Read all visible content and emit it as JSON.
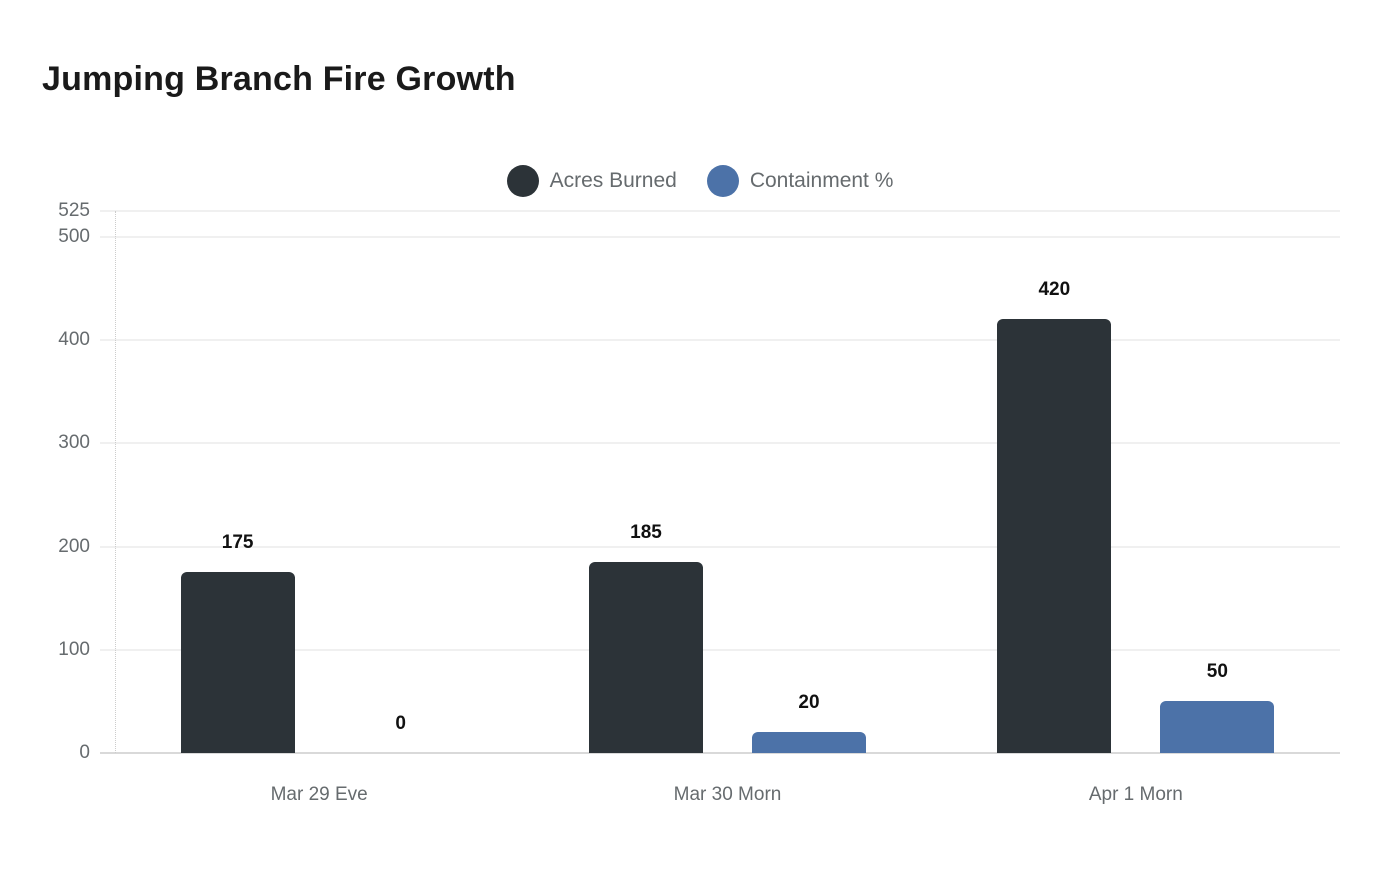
{
  "title": "Jumping Branch Fire Growth",
  "chart_data": {
    "type": "bar",
    "title": "Jumping Branch Fire Growth",
    "categories": [
      "Mar 29 Eve",
      "Mar 30 Morn",
      "Apr 1 Morn"
    ],
    "series": [
      {
        "name": "Acres Burned",
        "color": "#2c3338",
        "values": [
          175,
          185,
          420
        ]
      },
      {
        "name": "Containment %",
        "color": "#4c72a8",
        "values": [
          0,
          20,
          50
        ]
      }
    ],
    "data_labels": [
      [
        "175",
        "185",
        "420"
      ],
      [
        "0",
        "20",
        "50"
      ]
    ],
    "y_ticks": [
      0,
      100,
      200,
      300,
      400,
      500,
      525
    ],
    "ylim": [
      0,
      525
    ],
    "grid": "horizontal",
    "legend_position": "top",
    "legend_style": "circle",
    "background_color": "#ffffff"
  }
}
